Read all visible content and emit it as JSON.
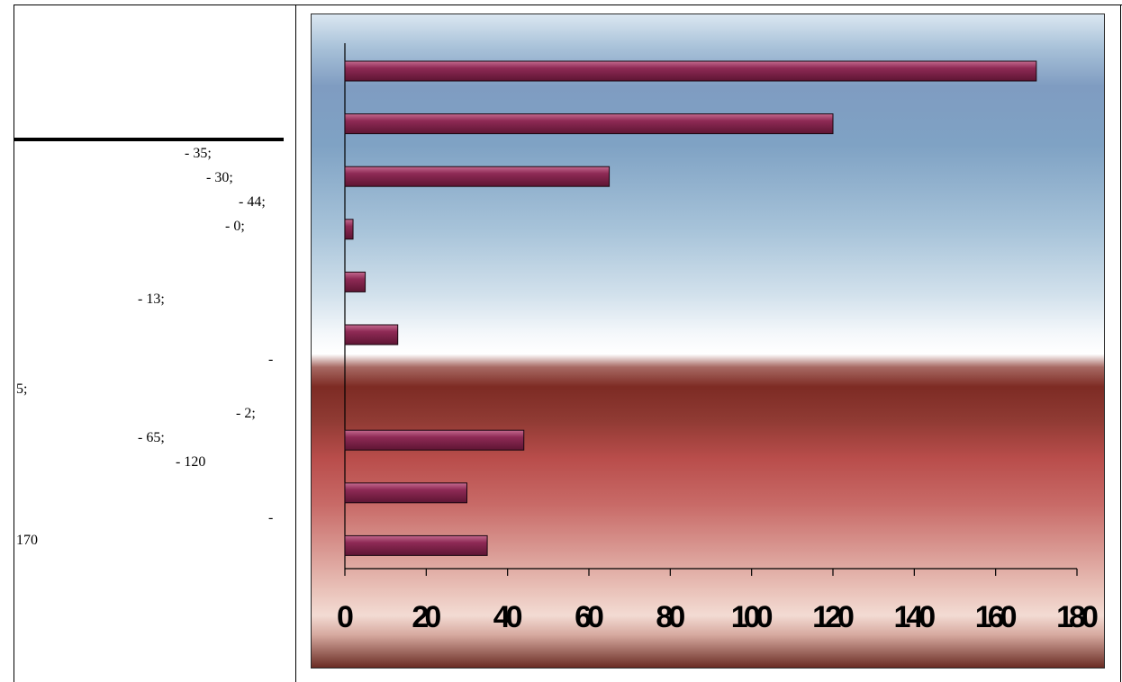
{
  "legend": {
    "lines": [
      "- 35;",
      "- 30;",
      "- 44;",
      "- 0;",
      "- 13;",
      "-",
      "5;",
      "- 2;",
      "- 65;",
      "- 120",
      "-",
      "170"
    ]
  },
  "chart_data": {
    "type": "bar",
    "orientation": "horizontal",
    "title": "",
    "xlabel": "",
    "ylabel": "",
    "xlim": [
      0,
      180
    ],
    "xticks": [
      0,
      20,
      40,
      60,
      80,
      100,
      120,
      140,
      160,
      180
    ],
    "tick_labels": [
      "0",
      "20",
      "40",
      "60",
      "80",
      "100",
      "120",
      "140",
      "160",
      "180"
    ],
    "values_top_to_bottom": [
      170,
      120,
      65,
      2,
      5,
      13,
      0,
      44,
      30,
      35
    ],
    "bar_color": "#8e2a55",
    "grid": false
  }
}
